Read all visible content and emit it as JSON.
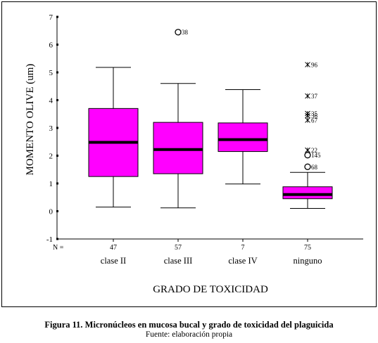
{
  "caption": "Figura 11.  Micronúcleos en mucosa bucal y grado de toxicidad del plaguicida",
  "source": "Fuente: elaboración propia",
  "chart_data": {
    "type": "boxplot",
    "ylabel": "MOMENTO OLIVE (um)",
    "xlabel": "GRADO DE TOXICIDAD",
    "ylim": [
      -1,
      7
    ],
    "yticks": [
      "-1",
      "0",
      "1",
      "2",
      "3",
      "4",
      "5",
      "6",
      "7"
    ],
    "n_label": "N =",
    "box_color": "#ff00ff",
    "groups": [
      {
        "label": "clase II",
        "n": "47",
        "min": 0.15,
        "q1": 1.25,
        "median": 2.48,
        "q3": 3.7,
        "max": 5.18,
        "outliers": []
      },
      {
        "label": "clase III",
        "n": "57",
        "min": 0.12,
        "q1": 1.35,
        "median": 2.22,
        "q3": 3.2,
        "max": 4.6,
        "outliers": [
          {
            "value": 6.45,
            "marker": "circle",
            "label": "38"
          }
        ]
      },
      {
        "label": "clase IV",
        "n": "7",
        "min": 0.98,
        "q1": 2.15,
        "median": 2.58,
        "q3": 3.18,
        "max": 4.38,
        "outliers": []
      },
      {
        "label": "ninguno",
        "n": "75",
        "min": 0.1,
        "q1": 0.45,
        "median": 0.6,
        "q3": 0.88,
        "max": 1.4,
        "outliers": [
          {
            "value": 5.28,
            "marker": "star",
            "label": "96"
          },
          {
            "value": 4.15,
            "marker": "star",
            "label": "37"
          },
          {
            "value": 3.52,
            "marker": "star",
            "label": "35"
          },
          {
            "value": 3.44,
            "marker": "star",
            "label": "36"
          },
          {
            "value": 3.28,
            "marker": "star",
            "label": "67"
          },
          {
            "value": 2.2,
            "marker": "star",
            "label": "22"
          },
          {
            "value": 2.02,
            "marker": "circle",
            "label": "145"
          },
          {
            "value": 1.6,
            "marker": "circle",
            "label": "68"
          }
        ]
      }
    ]
  }
}
